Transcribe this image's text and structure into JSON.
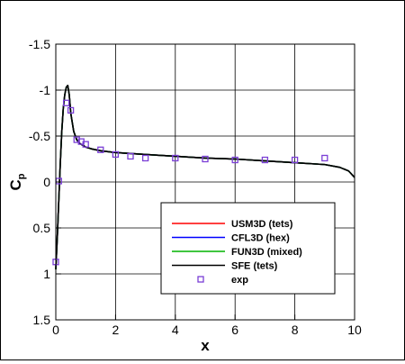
{
  "chart_data": {
    "type": "line",
    "xlabel": "x",
    "ylabel": "C",
    "ylabel_subscript": "p",
    "xlim": [
      0,
      10
    ],
    "ylim": [
      1.5,
      -1.5
    ],
    "y_inverted": true,
    "grid": true,
    "xticks": [
      0,
      2,
      4,
      6,
      8,
      10
    ],
    "xtick_labels": [
      "0",
      "2",
      "4",
      "6",
      "8",
      "10"
    ],
    "yticks": [
      -1.5,
      -1,
      -0.5,
      0,
      0.5,
      1,
      1.5
    ],
    "ytick_labels": [
      "-1.5",
      "-1",
      "-0.5",
      "0",
      "0.5",
      "1",
      "1.5"
    ],
    "legend_position": "bottom-right",
    "series": [
      {
        "name": "USM3D (tets)",
        "color": "#ff0000",
        "x": [
          0,
          0.05,
          0.1,
          0.15,
          0.2,
          0.25,
          0.3,
          0.35,
          0.4,
          0.45,
          0.5,
          0.6,
          0.7,
          0.8,
          1.0,
          1.2,
          1.5,
          2,
          3,
          4,
          5,
          6,
          7,
          8,
          9,
          9.5,
          9.8,
          10
        ],
        "y": [
          0.95,
          0.6,
          0.2,
          -0.2,
          -0.55,
          -0.8,
          -0.95,
          -1.03,
          -1.05,
          -0.95,
          -0.75,
          -0.55,
          -0.46,
          -0.42,
          -0.38,
          -0.36,
          -0.34,
          -0.32,
          -0.3,
          -0.28,
          -0.26,
          -0.25,
          -0.23,
          -0.21,
          -0.19,
          -0.16,
          -0.12,
          -0.05
        ]
      },
      {
        "name": "CFL3D (hex)",
        "color": "#0000ff",
        "x": [
          0,
          0.05,
          0.1,
          0.15,
          0.2,
          0.25,
          0.3,
          0.35,
          0.4,
          0.45,
          0.5,
          0.6,
          0.7,
          0.8,
          1.0,
          1.2,
          1.5,
          2,
          3,
          4,
          5,
          6,
          7,
          8,
          9,
          9.5,
          9.8,
          10
        ],
        "y": [
          0.95,
          0.6,
          0.2,
          -0.2,
          -0.55,
          -0.8,
          -0.95,
          -1.03,
          -1.05,
          -0.95,
          -0.75,
          -0.55,
          -0.46,
          -0.42,
          -0.38,
          -0.36,
          -0.34,
          -0.32,
          -0.3,
          -0.28,
          -0.26,
          -0.25,
          -0.23,
          -0.21,
          -0.19,
          -0.16,
          -0.12,
          -0.05
        ]
      },
      {
        "name": "FUN3D (mixed)",
        "color": "#00b400",
        "x": [
          0,
          0.05,
          0.1,
          0.15,
          0.2,
          0.25,
          0.3,
          0.35,
          0.4,
          0.45,
          0.5,
          0.6,
          0.7,
          0.8,
          1.0,
          1.2,
          1.5,
          2,
          3,
          4,
          5,
          6,
          7,
          8,
          9,
          9.5,
          9.8,
          10
        ],
        "y": [
          0.95,
          0.6,
          0.2,
          -0.2,
          -0.55,
          -0.8,
          -0.95,
          -1.03,
          -1.05,
          -0.95,
          -0.75,
          -0.55,
          -0.46,
          -0.42,
          -0.38,
          -0.36,
          -0.34,
          -0.32,
          -0.3,
          -0.28,
          -0.26,
          -0.25,
          -0.23,
          -0.21,
          -0.19,
          -0.16,
          -0.12,
          -0.05
        ]
      },
      {
        "name": "SFE (tets)",
        "color": "#000000",
        "x": [
          0,
          0.05,
          0.1,
          0.15,
          0.2,
          0.25,
          0.3,
          0.35,
          0.4,
          0.45,
          0.5,
          0.6,
          0.7,
          0.8,
          1.0,
          1.2,
          1.5,
          2,
          3,
          4,
          5,
          6,
          7,
          8,
          9,
          9.5,
          9.8,
          10
        ],
        "y": [
          0.95,
          0.6,
          0.2,
          -0.2,
          -0.55,
          -0.8,
          -0.95,
          -1.03,
          -1.05,
          -0.95,
          -0.75,
          -0.55,
          -0.46,
          -0.42,
          -0.38,
          -0.36,
          -0.34,
          -0.32,
          -0.3,
          -0.28,
          -0.26,
          -0.25,
          -0.23,
          -0.21,
          -0.19,
          -0.16,
          -0.12,
          -0.05
        ]
      },
      {
        "name": "exp",
        "color": "#7b3fd6",
        "marker": "square",
        "x": [
          0.0,
          0.1,
          0.35,
          0.5,
          0.7,
          0.85,
          1.0,
          1.5,
          2.0,
          2.5,
          3.0,
          4.0,
          5.0,
          6.0,
          7.0,
          8.0,
          9.0
        ],
        "y": [
          0.87,
          -0.01,
          -0.86,
          -0.78,
          -0.46,
          -0.44,
          -0.41,
          -0.35,
          -0.3,
          -0.28,
          -0.26,
          -0.26,
          -0.25,
          -0.24,
          -0.24,
          -0.24,
          -0.26
        ]
      }
    ]
  }
}
